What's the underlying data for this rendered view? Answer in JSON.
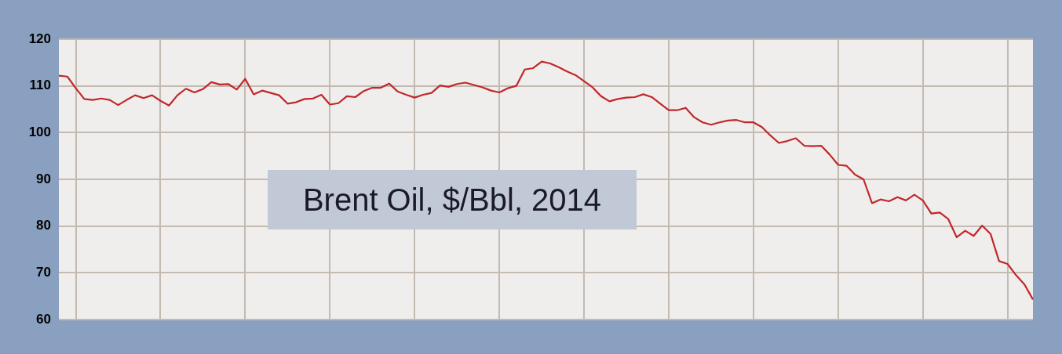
{
  "chart_data": {
    "type": "line",
    "title": "Brent Oil, $/Bbl, 2014",
    "categories": [
      null,
      null,
      null,
      null,
      null,
      null,
      null,
      null,
      null,
      null,
      null,
      null,
      null,
      null,
      null,
      null,
      null,
      null,
      null,
      null,
      null,
      null,
      null,
      null,
      null,
      null,
      null,
      null,
      null,
      null,
      null,
      null,
      null,
      null,
      null,
      null,
      null,
      null,
      null,
      null,
      null,
      null,
      null,
      null,
      null,
      null,
      null,
      null,
      null,
      null,
      null,
      null,
      null,
      null,
      null,
      null,
      null,
      null,
      null,
      null,
      null,
      null,
      null,
      null,
      null,
      null,
      null,
      null,
      null,
      null,
      null,
      null,
      null,
      null,
      null,
      null,
      null,
      null,
      null,
      null,
      null,
      null,
      null,
      null,
      null,
      null,
      null,
      null,
      null,
      null,
      null,
      null,
      null,
      null,
      null,
      null,
      null,
      null,
      null,
      null,
      null,
      null,
      null,
      null,
      null,
      null,
      null,
      null,
      null,
      null,
      null,
      null,
      null,
      null,
      null,
      null
    ],
    "series": [
      {
        "color": "#c0282a",
        "values": [
          112.2,
          112.0,
          109.5,
          107.2,
          107.0,
          107.3,
          107.0,
          105.9,
          107.0,
          108.0,
          107.4,
          108.0,
          106.8,
          105.8,
          108.0,
          109.4,
          108.6,
          109.3,
          110.8,
          110.3,
          110.4,
          109.2,
          111.5,
          108.2,
          109.0,
          108.5,
          108.0,
          106.2,
          106.5,
          107.2,
          107.3,
          108.1,
          106.0,
          106.3,
          107.8,
          107.6,
          108.9,
          109.6,
          109.6,
          110.5,
          108.8,
          108.1,
          107.5,
          108.1,
          108.5,
          110.1,
          109.8,
          110.4,
          110.7,
          110.2,
          109.7,
          109.0,
          108.6,
          109.5,
          110.0,
          113.5,
          113.8,
          115.2,
          114.8,
          114.0,
          113.1,
          112.3,
          111.0,
          109.7,
          107.8,
          106.7,
          107.2,
          107.5,
          107.6,
          108.2,
          107.6,
          106.2,
          104.8,
          104.8,
          105.3,
          103.3,
          102.2,
          101.7,
          102.2,
          102.6,
          102.7,
          102.2,
          102.2,
          101.2,
          99.4,
          97.8,
          98.2,
          98.8,
          97.2,
          97.1,
          97.2,
          95.3,
          93.1,
          92.9,
          91.0,
          90.0,
          84.9,
          85.7,
          85.3,
          86.2,
          85.5,
          86.7,
          85.5,
          82.7,
          82.9,
          81.5,
          77.6,
          79.0,
          77.9,
          80.1,
          78.3,
          72.5,
          71.9,
          69.5,
          67.5,
          64.3
        ]
      }
    ],
    "ylim": [
      60,
      120
    ],
    "yticks": [
      60,
      70,
      80,
      90,
      100,
      110,
      120
    ],
    "grid": true,
    "legend": false,
    "marker": "none",
    "line_style": "solid",
    "tick_labels": "y"
  }
}
